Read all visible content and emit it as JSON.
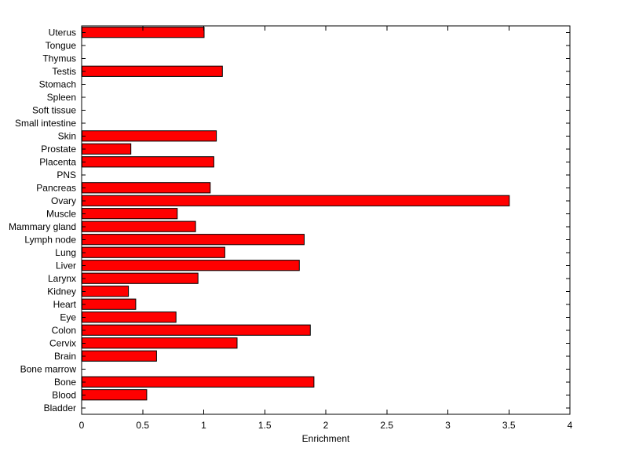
{
  "figure": {
    "background_color": "#ffffff",
    "axes_color": "#000000"
  },
  "chart_data": {
    "type": "bar",
    "orientation": "horizontal",
    "title": "",
    "xlabel": "Enrichment",
    "ylabel": "",
    "xlim": [
      0,
      4
    ],
    "xticks": [
      0,
      0.5,
      1,
      1.5,
      2,
      2.5,
      3,
      3.5,
      4
    ],
    "grid": false,
    "legend": null,
    "bar_color": "#ff0000",
    "bar_edge_color": "#000000",
    "categories": [
      "Uterus",
      "Tongue",
      "Thymus",
      "Testis",
      "Stomach",
      "Spleen",
      "Soft tissue",
      "Small intestine",
      "Skin",
      "Prostate",
      "Placenta",
      "PNS",
      "Pancreas",
      "Ovary",
      "Muscle",
      "Mammary gland",
      "Lymph node",
      "Lung",
      "Liver",
      "Larynx",
      "Kidney",
      "Heart",
      "Eye",
      "Colon",
      "Cervix",
      "Brain",
      "Bone marrow",
      "Bone",
      "Blood",
      "Bladder"
    ],
    "values": [
      1.0,
      0,
      0,
      1.15,
      0,
      0,
      0,
      0,
      1.1,
      0.4,
      1.08,
      0,
      1.05,
      3.5,
      0.78,
      0.93,
      1.82,
      1.17,
      1.78,
      0.95,
      0.38,
      0.44,
      0.77,
      1.87,
      1.27,
      0.61,
      0,
      1.9,
      0.53,
      0
    ],
    "x_tick_labels": [
      "0",
      "0.5",
      "1",
      "1.5",
      "2",
      "2.5",
      "3",
      "3.5",
      "4"
    ]
  }
}
